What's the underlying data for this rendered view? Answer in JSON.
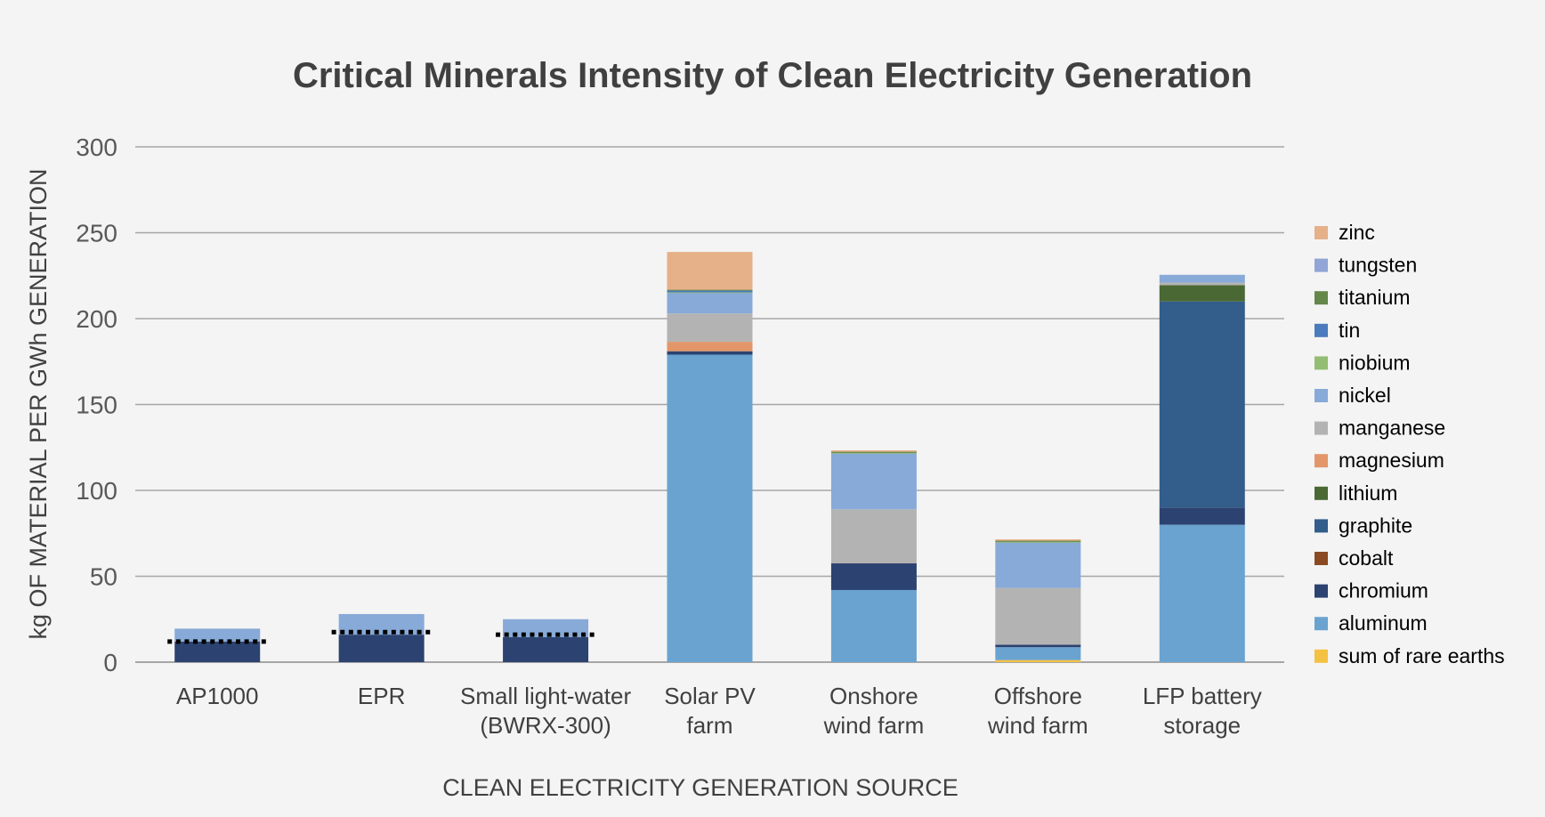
{
  "chart_data": {
    "type": "bar",
    "stacked": true,
    "title": "Critical Minerals Intensity of Clean Electricity Generation",
    "xlabel": "CLEAN ELECTRICITY GENERATION SOURCE",
    "ylabel": "kg OF MATERIAL PER GWh GENERATION",
    "ylim": [
      0,
      300
    ],
    "yticks": [
      0,
      50,
      100,
      150,
      200,
      250,
      300
    ],
    "grid": true,
    "legend_position": "right",
    "categories": [
      [
        "AP1000"
      ],
      [
        "EPR"
      ],
      [
        "Small light-water",
        "(BWRX-300)"
      ],
      [
        "Solar PV",
        "farm"
      ],
      [
        "Onshore",
        "wind farm"
      ],
      [
        "Offshore",
        "wind farm"
      ],
      [
        "LFP battery",
        "storage"
      ]
    ],
    "series": [
      {
        "name": "sum of rare earths",
        "color": "#f4c142",
        "values": [
          0,
          0,
          0,
          0,
          0,
          1.2,
          0
        ]
      },
      {
        "name": "aluminum",
        "color": "#6aa3d0",
        "values": [
          0,
          0,
          0,
          179,
          42,
          7.5,
          80
        ]
      },
      {
        "name": "chromium",
        "color": "#2c4270",
        "values": [
          12,
          16,
          14.5,
          2,
          15.5,
          1.5,
          10
        ]
      },
      {
        "name": "cobalt",
        "color": "#8b4a22",
        "values": [
          0,
          0,
          0,
          0,
          0,
          0,
          0
        ]
      },
      {
        "name": "graphite",
        "color": "#335d8a",
        "values": [
          0,
          0,
          0,
          0,
          0,
          0,
          120
        ]
      },
      {
        "name": "lithium",
        "color": "#4a6834",
        "values": [
          0,
          0,
          0,
          0,
          0,
          0,
          9.5
        ]
      },
      {
        "name": "magnesium",
        "color": "#e2966a",
        "values": [
          0,
          0,
          0,
          5.5,
          0,
          0,
          0
        ]
      },
      {
        "name": "manganese",
        "color": "#b3b3b3",
        "values": [
          0,
          0,
          0,
          16.5,
          31.5,
          33,
          1.5
        ]
      },
      {
        "name": "nickel",
        "color": "#87aad8",
        "values": [
          7.5,
          12,
          10.5,
          12,
          32.5,
          26.5,
          4.5
        ]
      },
      {
        "name": "niobium",
        "color": "#93bd72",
        "values": [
          0,
          0,
          0,
          0.3,
          0.3,
          0.3,
          0
        ]
      },
      {
        "name": "tin",
        "color": "#4a7bbc",
        "values": [
          0,
          0,
          0,
          1,
          0,
          0,
          0
        ]
      },
      {
        "name": "titanium",
        "color": "#64874a",
        "values": [
          0,
          0,
          0,
          0.5,
          0.7,
          0.7,
          0
        ]
      },
      {
        "name": "tungsten",
        "color": "#91a5d6",
        "values": [
          0,
          0,
          0,
          0,
          0,
          0,
          0
        ]
      },
      {
        "name": "zinc",
        "color": "#e6b089",
        "values": [
          0,
          0,
          0,
          22,
          0.8,
          0.8,
          0
        ]
      }
    ],
    "reference_lines": {
      "style": "dotted",
      "color": "#000000",
      "values": [
        12,
        17.5,
        16,
        null,
        null,
        null,
        null
      ]
    },
    "legend_order": [
      "zinc",
      "tungsten",
      "titanium",
      "tin",
      "niobium",
      "nickel",
      "manganese",
      "magnesium",
      "lithium",
      "graphite",
      "cobalt",
      "chromium",
      "aluminum",
      "sum of rare earths"
    ]
  }
}
